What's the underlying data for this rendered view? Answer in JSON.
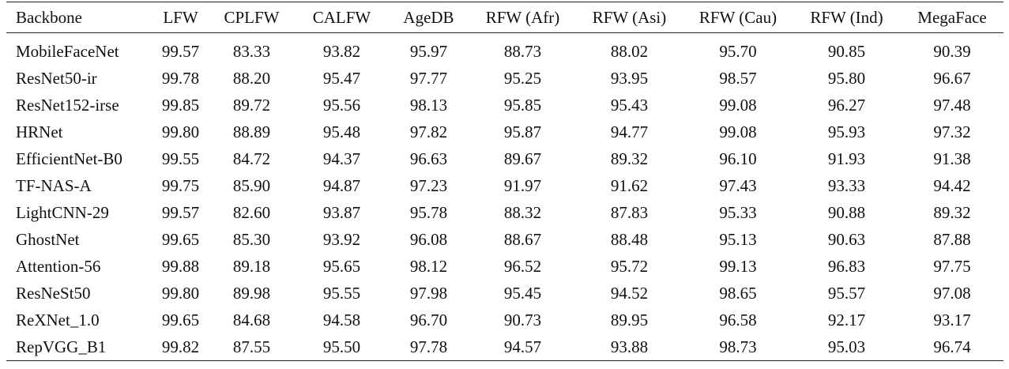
{
  "table": {
    "header": [
      "Backbone",
      "LFW",
      "CPLFW",
      "CALFW",
      "AgeDB",
      "RFW (Afr)",
      "RFW (Asi)",
      "RFW (Cau)",
      "RFW (Ind)",
      "MegaFace"
    ],
    "rows": [
      [
        "MobileFaceNet",
        "99.57",
        "83.33",
        "93.82",
        "95.97",
        "88.73",
        "88.02",
        "95.70",
        "90.85",
        "90.39"
      ],
      [
        "ResNet50-ir",
        "99.78",
        "88.20",
        "95.47",
        "97.77",
        "95.25",
        "93.95",
        "98.57",
        "95.80",
        "96.67"
      ],
      [
        "ResNet152-irse",
        "99.85",
        "89.72",
        "95.56",
        "98.13",
        "95.85",
        "95.43",
        "99.08",
        "96.27",
        "97.48"
      ],
      [
        "HRNet",
        "99.80",
        "88.89",
        "95.48",
        "97.82",
        "95.87",
        "94.77",
        "99.08",
        "95.93",
        "97.32"
      ],
      [
        "EfficientNet-B0",
        "99.55",
        "84.72",
        "94.37",
        "96.63",
        "89.67",
        "89.32",
        "96.10",
        "91.93",
        "91.38"
      ],
      [
        "TF-NAS-A",
        "99.75",
        "85.90",
        "94.87",
        "97.23",
        "91.97",
        "91.62",
        "97.43",
        "93.33",
        "94.42"
      ],
      [
        "LightCNN-29",
        "99.57",
        "82.60",
        "93.87",
        "95.78",
        "88.32",
        "87.83",
        "95.33",
        "90.88",
        "89.32"
      ],
      [
        "GhostNet",
        "99.65",
        "85.30",
        "93.92",
        "96.08",
        "88.67",
        "88.48",
        "95.13",
        "90.63",
        "87.88"
      ],
      [
        "Attention-56",
        "99.88",
        "89.18",
        "95.65",
        "98.12",
        "96.52",
        "95.72",
        "99.13",
        "96.83",
        "97.75"
      ],
      [
        "ResNeSt50",
        "99.80",
        "89.98",
        "95.55",
        "97.98",
        "95.45",
        "94.52",
        "98.65",
        "95.57",
        "97.08"
      ],
      [
        "ReXNet_1.0",
        "99.65",
        "84.68",
        "94.58",
        "96.70",
        "90.73",
        "89.95",
        "96.58",
        "92.17",
        "93.17"
      ],
      [
        "RepVGG_B1",
        "99.82",
        "87.55",
        "95.50",
        "97.78",
        "94.57",
        "93.88",
        "98.73",
        "95.03",
        "96.74"
      ]
    ]
  }
}
